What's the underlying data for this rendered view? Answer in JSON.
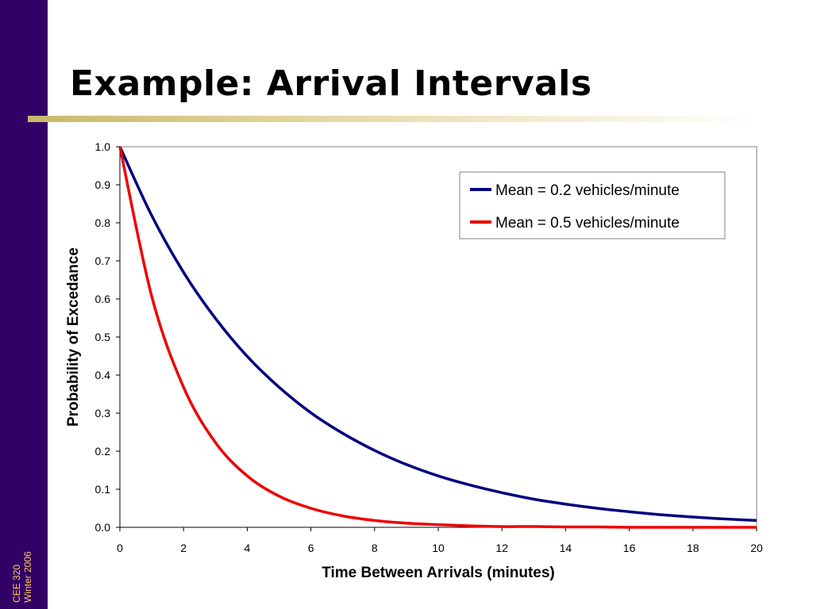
{
  "slide": {
    "title": "Example: Arrival Intervals",
    "footer_course": "CEE 320",
    "footer_term": "Winter 2006"
  },
  "colors": {
    "sidebar": "#330066",
    "footer_text": "#ffcc66",
    "series_1": "#000080",
    "series_2": "#ee0000"
  },
  "chart_data": {
    "type": "line",
    "title": "",
    "xlabel": "Time Between Arrivals (minutes)",
    "ylabel": "Probability of Excedance",
    "xlim": [
      0,
      20
    ],
    "ylim": [
      0,
      1
    ],
    "x_ticks": [
      0,
      2,
      4,
      6,
      8,
      10,
      12,
      14,
      16,
      18,
      20
    ],
    "y_ticks": [
      "0.0",
      "0.1",
      "0.2",
      "0.3",
      "0.4",
      "0.5",
      "0.6",
      "0.7",
      "0.8",
      "0.9",
      "1.0"
    ],
    "grid": false,
    "legend_position": "top-right",
    "x": [
      0,
      1,
      2,
      3,
      4,
      5,
      6,
      7,
      8,
      9,
      10,
      11,
      12,
      13,
      14,
      15,
      16,
      17,
      18,
      19,
      20
    ],
    "series": [
      {
        "name": "Mean = 0.2 vehicles/minute",
        "color": "#000080",
        "values": [
          1.0,
          0.819,
          0.67,
          0.549,
          0.449,
          0.368,
          0.301,
          0.247,
          0.202,
          0.165,
          0.135,
          0.111,
          0.091,
          0.074,
          0.061,
          0.05,
          0.041,
          0.033,
          0.027,
          0.022,
          0.018
        ]
      },
      {
        "name": "Mean = 0.5 vehicles/minute",
        "color": "#ee0000",
        "values": [
          1.0,
          0.607,
          0.368,
          0.223,
          0.135,
          0.082,
          0.05,
          0.03,
          0.018,
          0.011,
          0.007,
          0.004,
          0.002,
          0.002,
          0.001,
          0.001,
          0.0,
          0.0,
          0.0,
          0.0,
          0.0
        ]
      }
    ]
  }
}
